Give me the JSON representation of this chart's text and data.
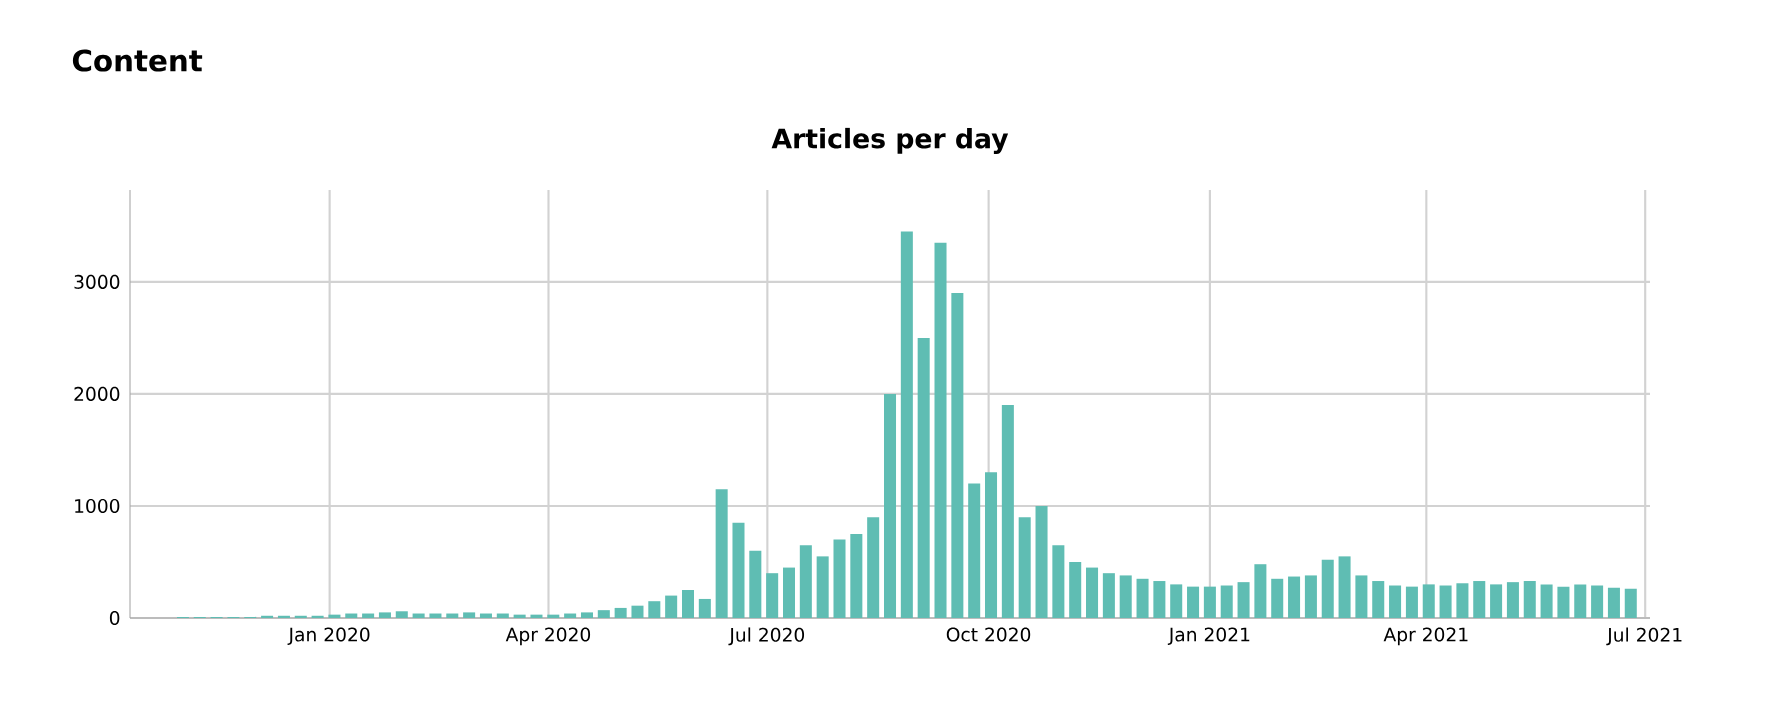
{
  "chart_data": {
    "type": "bar",
    "title": "Articles per day",
    "annotations": [
      "Content"
    ],
    "x": [
      "2019-11-01",
      "2019-11-08",
      "2019-11-15",
      "2019-11-22",
      "2019-11-29",
      "2019-12-06",
      "2019-12-13",
      "2019-12-20",
      "2019-12-27",
      "2020-01-03",
      "2020-01-10",
      "2020-01-17",
      "2020-01-24",
      "2020-01-31",
      "2020-02-07",
      "2020-02-14",
      "2020-02-21",
      "2020-02-28",
      "2020-03-06",
      "2020-03-13",
      "2020-03-20",
      "2020-03-27",
      "2020-04-03",
      "2020-04-10",
      "2020-04-17",
      "2020-04-24",
      "2020-05-01",
      "2020-05-08",
      "2020-05-15",
      "2020-05-22",
      "2020-05-29",
      "2020-06-05",
      "2020-06-12",
      "2020-06-19",
      "2020-06-26",
      "2020-07-03",
      "2020-07-10",
      "2020-07-17",
      "2020-07-24",
      "2020-07-31",
      "2020-08-07",
      "2020-08-14",
      "2020-08-21",
      "2020-08-28",
      "2020-09-04",
      "2020-09-11",
      "2020-09-18",
      "2020-09-25",
      "2020-10-02",
      "2020-10-09",
      "2020-10-16",
      "2020-10-23",
      "2020-10-30",
      "2020-11-06",
      "2020-11-13",
      "2020-11-20",
      "2020-11-27",
      "2020-12-04",
      "2020-12-11",
      "2020-12-18",
      "2020-12-25",
      "2021-01-01",
      "2021-01-08",
      "2021-01-15",
      "2021-01-22",
      "2021-01-29",
      "2021-02-05",
      "2021-02-12",
      "2021-02-19",
      "2021-02-26",
      "2021-03-05",
      "2021-03-12",
      "2021-03-19",
      "2021-03-26",
      "2021-04-02",
      "2021-04-09",
      "2021-04-16",
      "2021-04-23",
      "2021-04-30",
      "2021-05-07",
      "2021-05-14",
      "2021-05-21",
      "2021-05-28",
      "2021-06-04",
      "2021-06-11",
      "2021-06-18",
      "2021-06-25"
    ],
    "values": [
      10,
      10,
      10,
      10,
      10,
      20,
      20,
      20,
      20,
      30,
      40,
      40,
      50,
      60,
      40,
      40,
      40,
      50,
      40,
      40,
      30,
      30,
      30,
      40,
      50,
      70,
      90,
      110,
      150,
      200,
      250,
      170,
      1150,
      850,
      600,
      400,
      450,
      650,
      550,
      700,
      750,
      900,
      2000,
      3450,
      2500,
      3350,
      2900,
      1200,
      1300,
      1900,
      900,
      1000,
      650,
      500,
      450,
      400,
      380,
      350,
      330,
      300,
      280,
      280,
      290,
      320,
      480,
      350,
      370,
      380,
      520,
      550,
      380,
      330,
      290,
      280,
      300,
      290,
      310,
      330,
      300,
      320,
      330,
      300,
      280,
      300,
      290,
      270,
      260
    ],
    "color": "#5fbdb3",
    "xlim": [
      "2019-10-10",
      "2021-07-03"
    ],
    "xticks": [
      {
        "value": "2020-01-01",
        "label": "Jan 2020"
      },
      {
        "value": "2020-04-01",
        "label": "Apr 2020"
      },
      {
        "value": "2020-07-01",
        "label": "Jul 2020"
      },
      {
        "value": "2020-10-01",
        "label": "Oct 2020"
      },
      {
        "value": "2021-01-01",
        "label": "Jan 2021"
      },
      {
        "value": "2021-04-01",
        "label": "Apr 2021"
      },
      {
        "value": "2021-07-01",
        "label": "Jul 2021"
      }
    ],
    "ylim": [
      0,
      3820
    ],
    "yticks": [
      0,
      1000,
      2000,
      3000
    ],
    "grid": true
  }
}
